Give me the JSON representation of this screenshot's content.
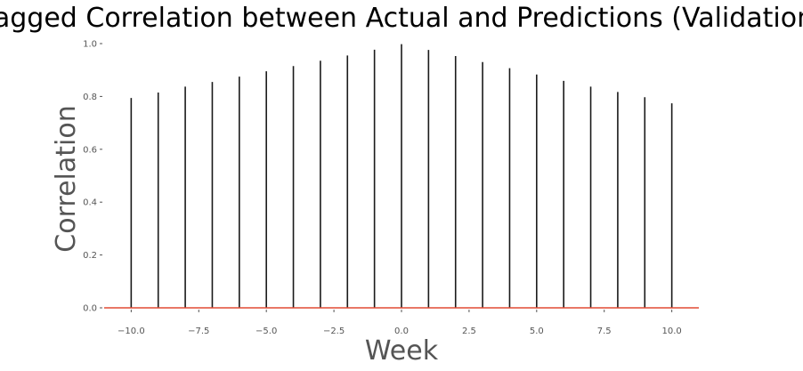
{
  "chart_data": {
    "type": "stem",
    "title": "Lagged Correlation between Actual and Predictions (Validation)",
    "xlabel": "Week",
    "ylabel": "Correlation",
    "xlim": [
      -11,
      11
    ],
    "ylim": [
      0,
      1.0
    ],
    "x_ticks": [
      -10.0,
      -7.5,
      -5.0,
      -2.5,
      0.0,
      2.5,
      5.0,
      7.5,
      10.0
    ],
    "x_tick_labels": [
      "−10.0",
      "−7.5",
      "−5.0",
      "−2.5",
      "0.0",
      "2.5",
      "5.0",
      "7.5",
      "10.0"
    ],
    "y_ticks": [
      0.0,
      0.2,
      0.4,
      0.6,
      0.8,
      1.0
    ],
    "y_tick_labels": [
      "0.0",
      "0.2",
      "0.4",
      "0.6",
      "0.8",
      "1.0"
    ],
    "grid": false,
    "stem_color": "#1a1a1a",
    "baseline_color": "#e24a33",
    "x": [
      -10,
      -9,
      -8,
      -7,
      -6,
      -5,
      -4,
      -3,
      -2,
      -1,
      0,
      1,
      2,
      3,
      4,
      5,
      6,
      7,
      8,
      9,
      10
    ],
    "values": [
      0.794,
      0.815,
      0.837,
      0.855,
      0.875,
      0.895,
      0.915,
      0.935,
      0.955,
      0.977,
      0.998,
      0.976,
      0.953,
      0.93,
      0.907,
      0.883,
      0.859,
      0.837,
      0.817,
      0.797,
      0.774
    ]
  }
}
